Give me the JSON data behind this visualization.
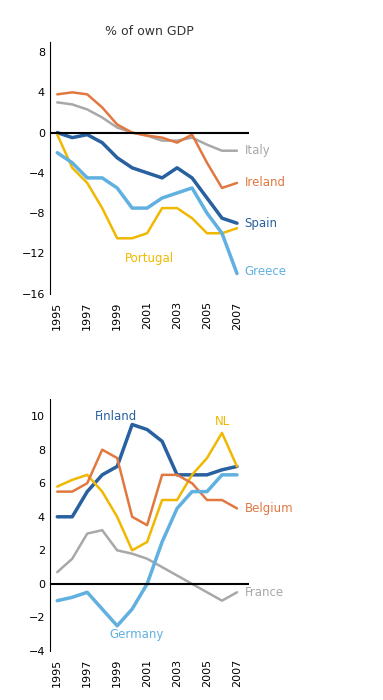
{
  "title": "% of own GDP",
  "years": [
    1995,
    1996,
    1997,
    1998,
    1999,
    2000,
    2001,
    2002,
    2003,
    2004,
    2005,
    2006,
    2007
  ],
  "chart1": {
    "ylim": [
      -16,
      9
    ],
    "yticks": [
      -16,
      -12,
      -8,
      -4,
      0,
      4,
      8
    ],
    "series": {
      "Italy": [
        3.0,
        2.8,
        2.3,
        1.5,
        0.5,
        0.0,
        -0.3,
        -0.8,
        -0.8,
        -0.5,
        -1.2,
        -1.8,
        -1.8
      ],
      "Ireland": [
        3.8,
        4.0,
        3.8,
        2.5,
        0.8,
        0.0,
        -0.3,
        -0.5,
        -1.0,
        -0.2,
        -3.0,
        -5.5,
        -5.0
      ],
      "Spain": [
        0.0,
        -0.5,
        -0.2,
        -1.0,
        -2.5,
        -3.5,
        -4.0,
        -4.5,
        -3.5,
        -4.5,
        -6.5,
        -8.5,
        -9.0
      ],
      "Portugal": [
        -0.2,
        -3.5,
        -5.0,
        -7.5,
        -10.5,
        -10.5,
        -10.0,
        -7.5,
        -7.5,
        -8.5,
        -10.0,
        -10.0,
        -9.5
      ],
      "Greece": [
        -2.0,
        -3.0,
        -4.5,
        -4.5,
        -5.5,
        -7.5,
        -7.5,
        -6.5,
        -6.0,
        -5.5,
        -8.0,
        -10.0,
        -14.0
      ]
    },
    "colors": {
      "Italy": "#a8a8a8",
      "Ireland": "#e07840",
      "Spain": "#2860a0",
      "Portugal": "#f0b800",
      "Greece": "#60b0e0"
    }
  },
  "chart2": {
    "ylim": [
      -4,
      11
    ],
    "yticks": [
      -4,
      -2,
      0,
      2,
      4,
      6,
      8,
      10
    ],
    "series": {
      "Finland": [
        4.0,
        4.0,
        5.5,
        6.5,
        7.0,
        9.5,
        9.2,
        8.5,
        6.5,
        6.5,
        6.5,
        6.8,
        7.0
      ],
      "NL": [
        5.8,
        6.2,
        6.5,
        5.5,
        4.0,
        2.0,
        2.5,
        5.0,
        5.0,
        6.5,
        7.5,
        9.0,
        7.0
      ],
      "Belgium": [
        5.5,
        5.5,
        6.0,
        8.0,
        7.5,
        4.0,
        3.5,
        6.5,
        6.5,
        6.0,
        5.0,
        5.0,
        4.5
      ],
      "France": [
        0.7,
        1.5,
        3.0,
        3.2,
        2.0,
        1.8,
        1.5,
        1.0,
        0.5,
        0.0,
        -0.5,
        -1.0,
        -0.5
      ],
      "Germany": [
        -1.0,
        -0.8,
        -0.5,
        -1.5,
        -2.5,
        -1.5,
        0.0,
        2.5,
        4.5,
        5.5,
        5.5,
        6.5,
        6.5
      ]
    },
    "colors": {
      "Finland": "#2860a0",
      "NL": "#f0b800",
      "Belgium": "#e07840",
      "France": "#a8a8a8",
      "Germany": "#60b0e0"
    }
  }
}
